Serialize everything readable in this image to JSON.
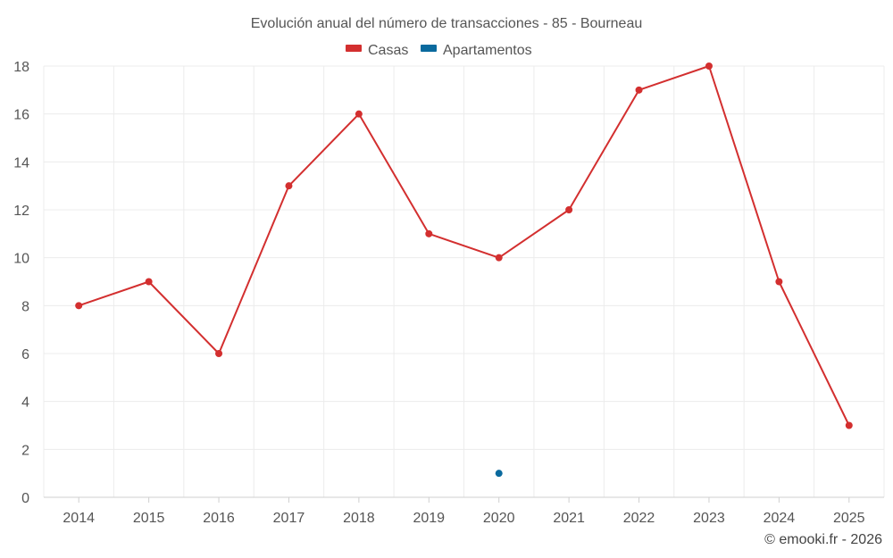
{
  "chart_data": {
    "type": "line",
    "title": "Evolución anual del número de transacciones - 85 - Bourneau",
    "categories": [
      "2014",
      "2015",
      "2016",
      "2017",
      "2018",
      "2019",
      "2020",
      "2021",
      "2022",
      "2023",
      "2024",
      "2025"
    ],
    "ylim": [
      0,
      18
    ],
    "yticks": [
      0,
      2,
      4,
      6,
      8,
      10,
      12,
      14,
      16,
      18
    ],
    "grid": true,
    "legend_position": "top-center",
    "series": [
      {
        "name": "Casas",
        "color": "#d32f2f",
        "values": [
          8,
          9,
          6,
          13,
          16,
          11,
          10,
          12,
          17,
          18,
          9,
          3
        ]
      },
      {
        "name": "Apartamentos",
        "color": "#0a6a9e",
        "values": [
          null,
          null,
          null,
          null,
          null,
          null,
          1,
          null,
          null,
          null,
          null,
          null
        ]
      }
    ]
  },
  "credit": "© emooki.fr - 2026"
}
